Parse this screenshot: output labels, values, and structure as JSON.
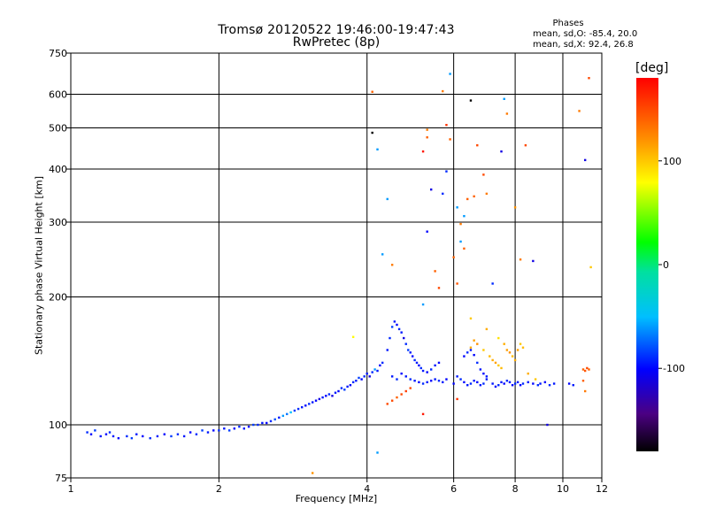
{
  "header": {
    "title": "Tromsø 20120522 19:46:00-19:47:43",
    "subtitle": "RwPretec (8p)",
    "phases_label": "Phases",
    "phases_o": "mean, sd,O: -85.4, 20.0",
    "phases_x": "mean, sd,X:  92.4, 26.8"
  },
  "colors": {
    "axis": "#000000",
    "background": "#ffffff"
  },
  "chart_data": {
    "type": "scatter",
    "xlabel": "Frequency [MHz]",
    "ylabel": "Stationary phase Virtual Height [km]",
    "x_scale": "log",
    "y_scale": "log",
    "xlim": [
      1,
      12
    ],
    "ylim": [
      75,
      750
    ],
    "grid": true,
    "x_ticks": [
      1,
      2,
      4,
      6,
      8,
      10,
      12
    ],
    "y_ticks": [
      75,
      100,
      200,
      300,
      400,
      500,
      600,
      750
    ],
    "x_gridlines": [
      2,
      4,
      6,
      8,
      10
    ],
    "y_gridlines": [
      100,
      200,
      300,
      400,
      500,
      600
    ],
    "colorbar": {
      "label": "[deg]",
      "range": [
        -180,
        180
      ],
      "ticks": [
        100,
        0,
        -100
      ],
      "colormap": "rainbow"
    },
    "points": [
      [
        1.08,
        96,
        -90
      ],
      [
        1.1,
        95,
        -100
      ],
      [
        1.12,
        97,
        -85
      ],
      [
        1.15,
        94,
        -95
      ],
      [
        1.18,
        95,
        -100
      ],
      [
        1.2,
        96,
        -90
      ],
      [
        1.22,
        94,
        -95
      ],
      [
        1.25,
        93,
        -100
      ],
      [
        1.3,
        94,
        -90
      ],
      [
        1.33,
        93,
        -85
      ],
      [
        1.36,
        95,
        -95
      ],
      [
        1.4,
        94,
        -100
      ],
      [
        1.45,
        93,
        -90
      ],
      [
        1.5,
        94,
        -95
      ],
      [
        1.55,
        95,
        -100
      ],
      [
        1.6,
        94,
        -85
      ],
      [
        1.65,
        95,
        -90
      ],
      [
        1.7,
        94,
        -95
      ],
      [
        1.75,
        96,
        -100
      ],
      [
        1.8,
        95,
        -90
      ],
      [
        1.85,
        97,
        -85
      ],
      [
        1.9,
        96,
        -95
      ],
      [
        1.95,
        97,
        -100
      ],
      [
        2.0,
        97,
        -90
      ],
      [
        2.05,
        98,
        -95
      ],
      [
        2.1,
        97,
        -85
      ],
      [
        2.15,
        98,
        -100
      ],
      [
        2.2,
        99,
        -90
      ],
      [
        2.25,
        98,
        -95
      ],
      [
        2.3,
        99,
        -100
      ],
      [
        2.35,
        100,
        -85
      ],
      [
        2.4,
        100,
        -90
      ],
      [
        2.45,
        101,
        -95
      ],
      [
        2.5,
        101,
        -100
      ],
      [
        2.55,
        102,
        -90
      ],
      [
        2.6,
        103,
        -80
      ],
      [
        2.65,
        104,
        -95
      ],
      [
        2.7,
        105,
        -60
      ],
      [
        2.75,
        106,
        -70
      ],
      [
        2.8,
        107,
        -50
      ],
      [
        2.85,
        108,
        -85
      ],
      [
        2.9,
        109,
        -90
      ],
      [
        2.95,
        110,
        -95
      ],
      [
        3.0,
        111,
        -100
      ],
      [
        3.05,
        112,
        -90
      ],
      [
        3.1,
        113,
        -95
      ],
      [
        3.15,
        114,
        -100
      ],
      [
        3.2,
        115,
        -110
      ],
      [
        3.25,
        116,
        -95
      ],
      [
        3.3,
        117,
        -100
      ],
      [
        3.35,
        118,
        -90
      ],
      [
        3.4,
        117,
        -110
      ],
      [
        3.45,
        119,
        -95
      ],
      [
        3.5,
        120,
        -100
      ],
      [
        3.55,
        122,
        -90
      ],
      [
        3.6,
        121,
        -85
      ],
      [
        3.65,
        123,
        -95
      ],
      [
        3.7,
        124,
        -100
      ],
      [
        3.75,
        126,
        -90
      ],
      [
        3.8,
        127,
        -95
      ],
      [
        3.85,
        129,
        -85
      ],
      [
        3.9,
        128,
        -100
      ],
      [
        3.95,
        130,
        -90
      ],
      [
        4.0,
        132,
        -95
      ],
      [
        4.05,
        130,
        -110
      ],
      [
        4.1,
        133,
        -90
      ],
      [
        4.15,
        135,
        -60
      ],
      [
        4.2,
        134,
        -95
      ],
      [
        4.25,
        138,
        -100
      ],
      [
        4.3,
        140,
        -90
      ],
      [
        3.75,
        161,
        80
      ],
      [
        3.1,
        77,
        120
      ],
      [
        4.4,
        150,
        -95
      ],
      [
        4.45,
        160,
        -90
      ],
      [
        4.5,
        170,
        -85
      ],
      [
        4.55,
        175,
        -95
      ],
      [
        4.6,
        172,
        -100
      ],
      [
        4.65,
        168,
        -90
      ],
      [
        4.7,
        165,
        -95
      ],
      [
        4.75,
        160,
        -110
      ],
      [
        4.8,
        155,
        -90
      ],
      [
        4.85,
        150,
        -85
      ],
      [
        4.9,
        148,
        -95
      ],
      [
        4.95,
        145,
        -100
      ],
      [
        5.0,
        142,
        -90
      ],
      [
        5.05,
        140,
        -95
      ],
      [
        5.1,
        138,
        -100
      ],
      [
        5.15,
        136,
        -90
      ],
      [
        5.2,
        134,
        -95
      ],
      [
        5.3,
        133,
        -100
      ],
      [
        5.4,
        135,
        -90
      ],
      [
        5.5,
        138,
        -95
      ],
      [
        5.6,
        140,
        -100
      ],
      [
        4.5,
        130,
        -95
      ],
      [
        4.6,
        128,
        -90
      ],
      [
        4.7,
        132,
        -100
      ],
      [
        4.8,
        130,
        -95
      ],
      [
        4.9,
        128,
        -90
      ],
      [
        5.0,
        127,
        -95
      ],
      [
        5.1,
        126,
        -100
      ],
      [
        5.2,
        125,
        -90
      ],
      [
        5.3,
        126,
        -95
      ],
      [
        5.4,
        127,
        -100
      ],
      [
        5.5,
        128,
        -95
      ],
      [
        5.6,
        127,
        -90
      ],
      [
        5.7,
        126,
        -95
      ],
      [
        5.8,
        128,
        -100
      ],
      [
        4.4,
        112,
        150
      ],
      [
        4.5,
        114,
        150
      ],
      [
        4.6,
        116,
        140
      ],
      [
        4.7,
        118,
        150
      ],
      [
        4.8,
        120,
        155
      ],
      [
        4.9,
        122,
        150
      ],
      [
        5.2,
        106,
        170
      ],
      [
        6.1,
        115,
        160
      ],
      [
        6.0,
        125,
        -100
      ],
      [
        6.1,
        130,
        -95
      ],
      [
        6.2,
        128,
        -90
      ],
      [
        6.3,
        126,
        -100
      ],
      [
        6.4,
        124,
        -95
      ],
      [
        6.5,
        125,
        -90
      ],
      [
        6.6,
        127,
        -95
      ],
      [
        6.7,
        126,
        -100
      ],
      [
        6.8,
        124,
        -95
      ],
      [
        6.9,
        125,
        -90
      ],
      [
        7.0,
        128,
        -95
      ],
      [
        6.3,
        145,
        -100
      ],
      [
        6.4,
        148,
        -90
      ],
      [
        6.5,
        150,
        -95
      ],
      [
        6.6,
        146,
        -100
      ],
      [
        6.7,
        140,
        -90
      ],
      [
        6.8,
        135,
        -95
      ],
      [
        6.9,
        132,
        -100
      ],
      [
        7.0,
        130,
        -95
      ],
      [
        6.5,
        152,
        110
      ],
      [
        6.6,
        158,
        115
      ],
      [
        6.7,
        155,
        120
      ],
      [
        6.9,
        150,
        100
      ],
      [
        7.1,
        145,
        105
      ],
      [
        7.2,
        142,
        110
      ],
      [
        7.3,
        140,
        115
      ],
      [
        7.4,
        138,
        100
      ],
      [
        7.5,
        136,
        105
      ],
      [
        7.6,
        155,
        110
      ],
      [
        7.7,
        150,
        115
      ],
      [
        7.8,
        148,
        120
      ],
      [
        7.9,
        145,
        105
      ],
      [
        8.0,
        142,
        110
      ],
      [
        8.1,
        150,
        115
      ],
      [
        8.2,
        155,
        100
      ],
      [
        8.3,
        152,
        105
      ],
      [
        7.2,
        125,
        -95
      ],
      [
        7.3,
        123,
        -100
      ],
      [
        7.4,
        124,
        -90
      ],
      [
        7.5,
        126,
        -95
      ],
      [
        7.6,
        125,
        -100
      ],
      [
        7.7,
        127,
        -90
      ],
      [
        7.8,
        126,
        -95
      ],
      [
        7.9,
        124,
        -100
      ],
      [
        8.0,
        125,
        -90
      ],
      [
        8.1,
        126,
        -95
      ],
      [
        8.2,
        124,
        -100
      ],
      [
        8.3,
        125,
        -90
      ],
      [
        8.5,
        126,
        -95
      ],
      [
        8.7,
        125,
        -100
      ],
      [
        8.9,
        124,
        -90
      ],
      [
        9.0,
        125,
        -95
      ],
      [
        9.2,
        126,
        -100
      ],
      [
        9.4,
        124,
        -90
      ],
      [
        9.6,
        125,
        -95
      ],
      [
        10.3,
        125,
        -100
      ],
      [
        10.5,
        124,
        -95
      ],
      [
        11.0,
        135,
        140
      ],
      [
        11.1,
        134,
        145
      ],
      [
        11.2,
        136,
        150
      ],
      [
        11.3,
        135,
        140
      ],
      [
        11.1,
        120,
        130
      ],
      [
        11.0,
        127,
        140
      ],
      [
        9.3,
        100,
        -110
      ],
      [
        4.2,
        86,
        -60
      ],
      [
        4.1,
        487,
        -180
      ],
      [
        4.2,
        445,
        -60
      ],
      [
        4.1,
        608,
        140
      ],
      [
        4.5,
        238,
        130
      ],
      [
        4.4,
        340,
        -60
      ],
      [
        5.2,
        440,
        170
      ],
      [
        5.3,
        475,
        140
      ],
      [
        5.3,
        285,
        -100
      ],
      [
        5.4,
        358,
        -110
      ],
      [
        5.5,
        230,
        140
      ],
      [
        5.6,
        210,
        150
      ],
      [
        5.7,
        350,
        -90
      ],
      [
        5.8,
        508,
        160
      ],
      [
        5.9,
        470,
        140
      ],
      [
        5.9,
        670,
        -60
      ],
      [
        6.0,
        248,
        140
      ],
      [
        6.1,
        215,
        145
      ],
      [
        6.2,
        297,
        130
      ],
      [
        6.3,
        260,
        140
      ],
      [
        6.4,
        340,
        140
      ],
      [
        6.5,
        580,
        -180
      ],
      [
        6.6,
        345,
        140
      ],
      [
        6.7,
        455,
        150
      ],
      [
        7.0,
        350,
        130
      ],
      [
        7.2,
        215,
        -90
      ],
      [
        7.5,
        440,
        -110
      ],
      [
        7.6,
        585,
        -60
      ],
      [
        7.7,
        540,
        130
      ],
      [
        8.0,
        325,
        120
      ],
      [
        8.2,
        245,
        130
      ],
      [
        8.4,
        455,
        150
      ],
      [
        8.7,
        243,
        -110
      ],
      [
        10.8,
        548,
        130
      ],
      [
        11.1,
        420,
        -110
      ],
      [
        11.3,
        655,
        150
      ],
      [
        11.4,
        235,
        100
      ],
      [
        6.1,
        325,
        -60
      ],
      [
        6.3,
        310,
        -60
      ],
      [
        5.8,
        395,
        -90
      ],
      [
        6.2,
        270,
        -60
      ],
      [
        5.3,
        495,
        130
      ],
      [
        5.7,
        610,
        130
      ],
      [
        4.3,
        252,
        -60
      ],
      [
        5.2,
        192,
        -60
      ],
      [
        6.9,
        388,
        150
      ],
      [
        6.5,
        178,
        100
      ],
      [
        7.0,
        168,
        110
      ],
      [
        7.4,
        160,
        90
      ],
      [
        8.5,
        132,
        110
      ],
      [
        8.8,
        128,
        100
      ]
    ]
  }
}
